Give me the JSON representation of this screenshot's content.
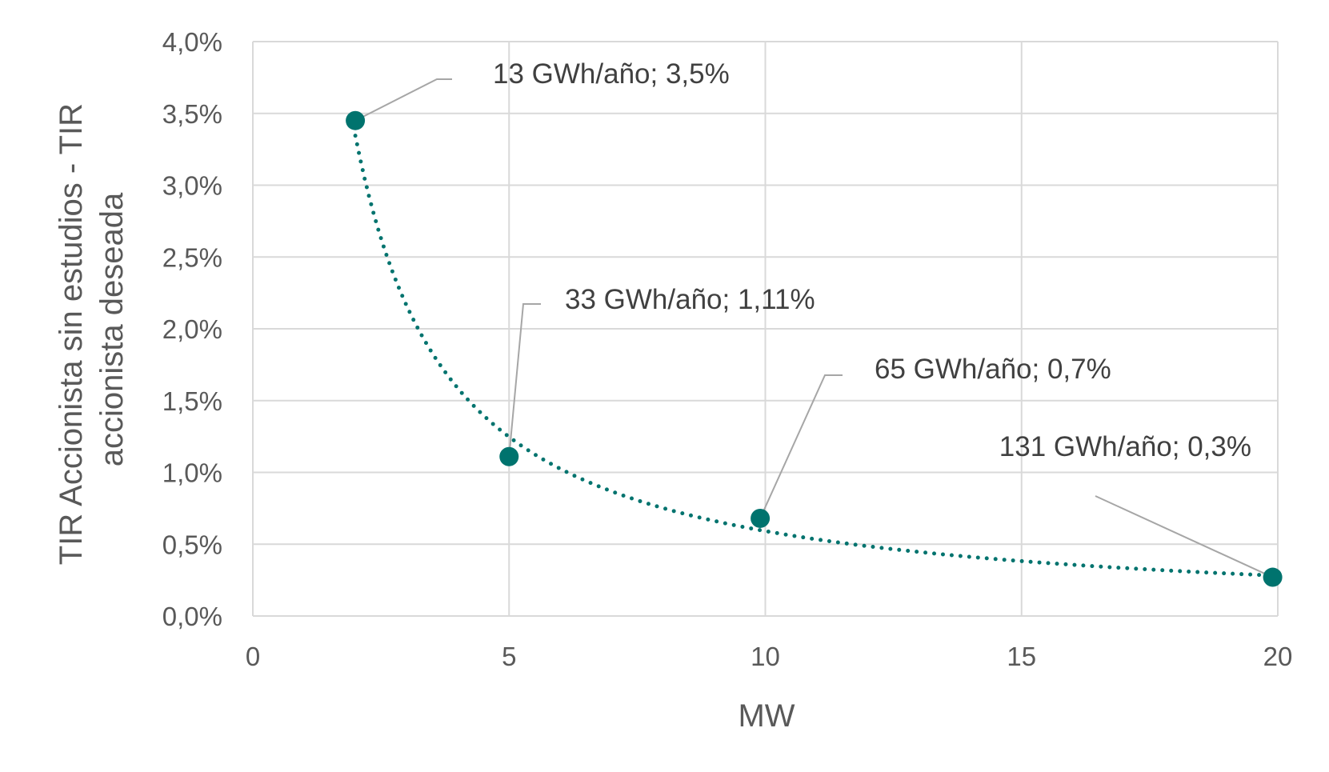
{
  "chart_data": {
    "type": "scatter",
    "xlabel": "MW",
    "ylabel_lines": [
      "TIR Accionista sin estudios - TIR",
      "accionista deseada"
    ],
    "xlim": [
      0,
      20
    ],
    "ylim": [
      0,
      0.04
    ],
    "x_ticks": [
      0,
      5,
      10,
      15,
      20
    ],
    "x_tick_labels": [
      "0",
      "5",
      "10",
      "15",
      "20"
    ],
    "y_ticks": [
      0,
      0.005,
      0.01,
      0.015,
      0.02,
      0.025,
      0.03,
      0.035,
      0.04
    ],
    "y_tick_labels": [
      "0,0%",
      "0,5%",
      "1,0%",
      "1,5%",
      "2,0%",
      "2,5%",
      "3,0%",
      "3,5%",
      "4,0%"
    ],
    "grid": true,
    "point_color": "#00736e",
    "trendline": {
      "style": "dotted",
      "type": "power",
      "color": "#00736e",
      "x_range": [
        2,
        20
      ]
    },
    "series": [
      {
        "points": [
          {
            "x": 2,
            "y": 0.0345,
            "label": "13 GWh/año; 3,5%"
          },
          {
            "x": 5,
            "y": 0.0111,
            "label": "33 GWh/año; 1,11%"
          },
          {
            "x": 9.9,
            "y": 0.0068,
            "label": "65 GWh/año; 0,7%"
          },
          {
            "x": 19.9,
            "y": 0.0027,
            "label": "131 GWh/año; 0,3%"
          }
        ]
      }
    ]
  }
}
